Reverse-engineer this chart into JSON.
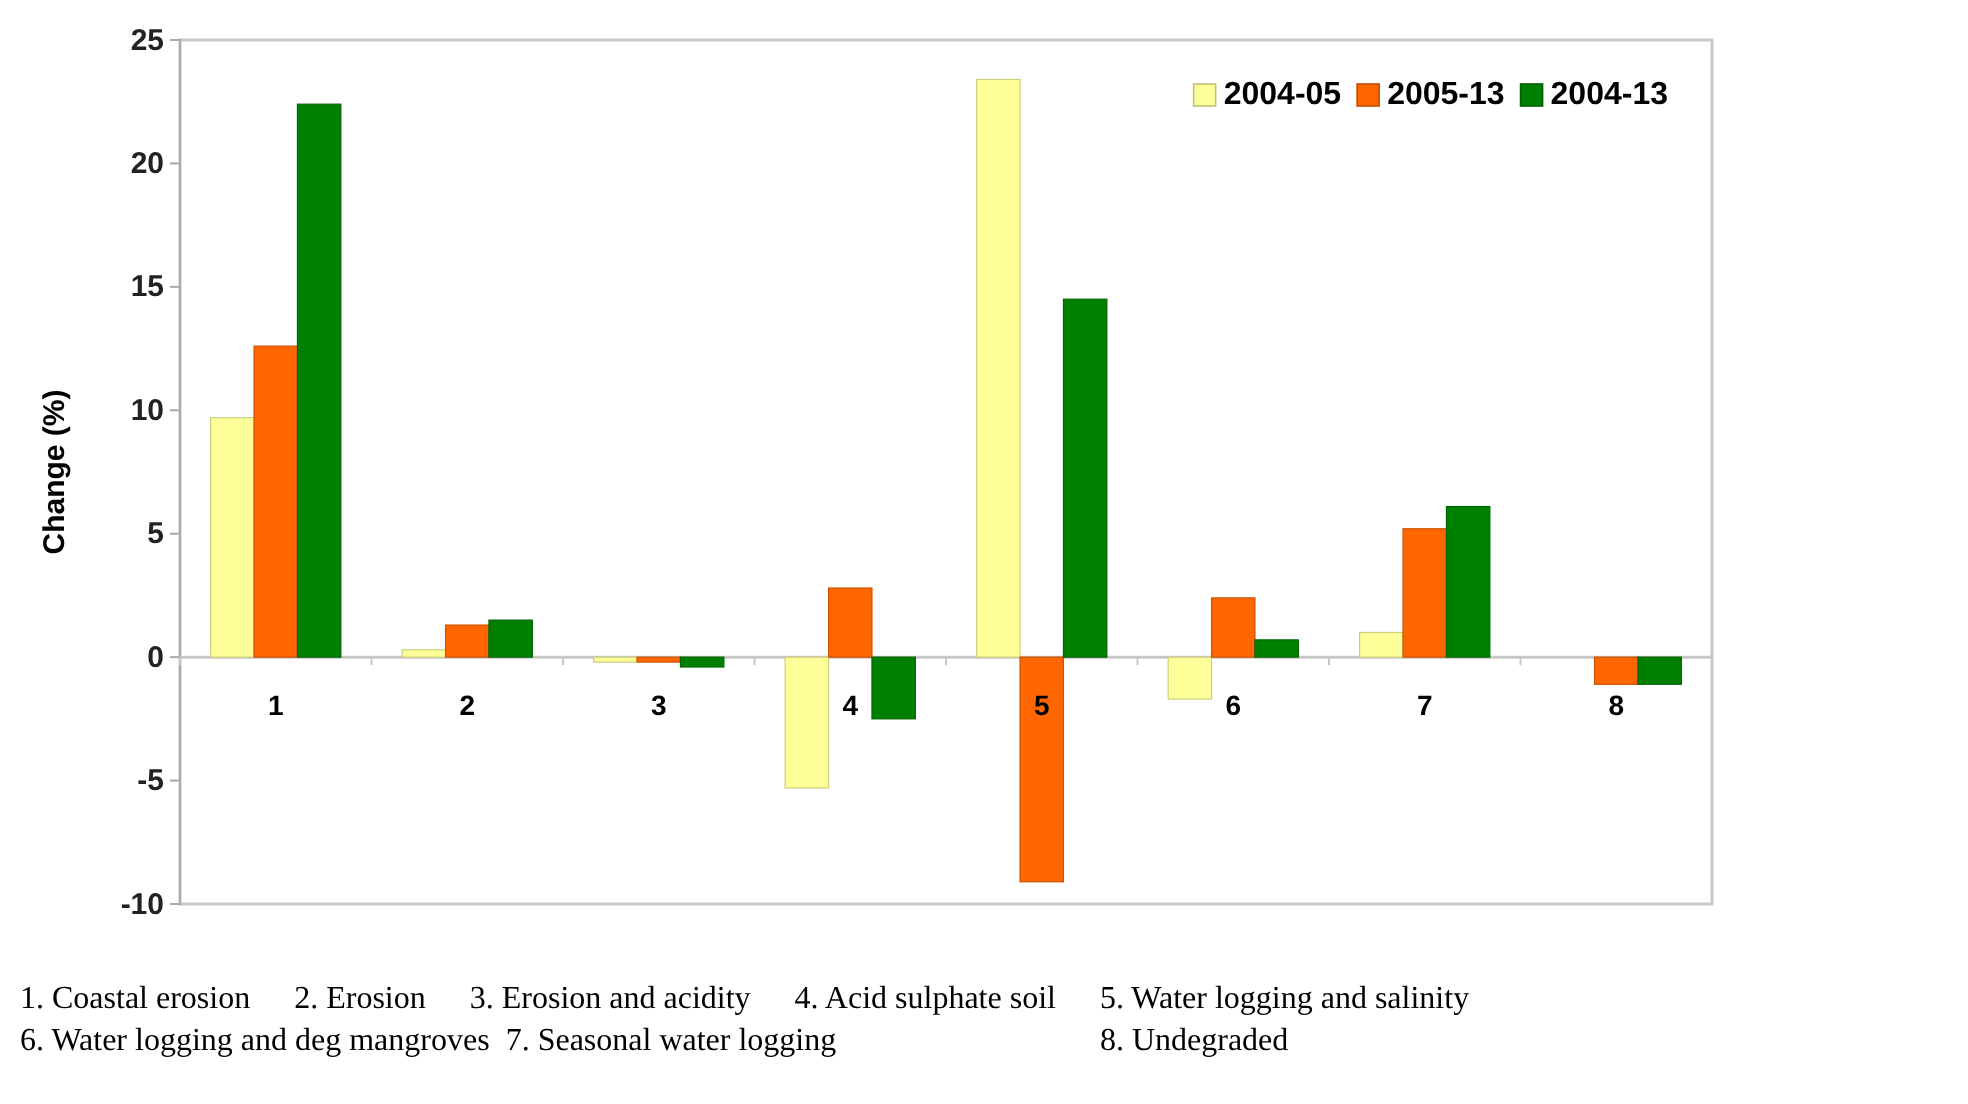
{
  "chart_data": {
    "type": "bar",
    "ylabel": "Change (%)",
    "categories": [
      "1",
      "2",
      "3",
      "4",
      "5",
      "6",
      "7",
      "8"
    ],
    "series": [
      {
        "name": "2004-05",
        "color": "#ffff99",
        "values": [
          9.7,
          0.3,
          -0.2,
          -5.3,
          23.4,
          -1.7,
          1.0,
          null
        ]
      },
      {
        "name": "2005-13",
        "color": "#ff6600",
        "values": [
          12.6,
          1.3,
          -0.2,
          2.8,
          -9.1,
          2.4,
          5.2,
          -1.1
        ]
      },
      {
        "name": "2004-13",
        "color": "#008000",
        "values": [
          22.4,
          1.5,
          -0.4,
          -2.5,
          14.5,
          0.7,
          6.1,
          -1.1
        ]
      }
    ],
    "ylim": [
      -10,
      25
    ],
    "yticks": [
      -10,
      -5,
      0,
      5,
      10,
      15,
      20,
      25
    ],
    "grid": false,
    "legend": "top right",
    "annotations": [
      "1. Coastal erosion",
      "2. Erosion",
      "3. Erosion and acidity",
      "4. Acid sulphate soil",
      "5. Water logging and salinity",
      "6. Water logging and deg mangroves",
      "7. Seasonal water logging",
      "8. Undegraded"
    ]
  }
}
